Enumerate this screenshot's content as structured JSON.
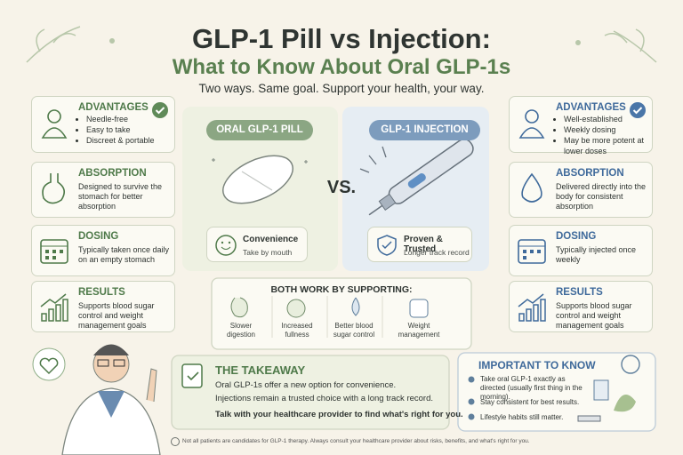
{
  "header": {
    "title": "GLP-1 Pill vs Injection:",
    "subtitle": "What to Know About Oral GLP-1s",
    "tagline": "Two ways. Same goal. Support your health, your way."
  },
  "pill": {
    "label": "ORAL GLP-1 PILL",
    "feature": {
      "title": "Convenience",
      "text": "Take by mouth"
    },
    "cards": [
      {
        "title": "ADVANTAGES",
        "items": [
          "Needle-free",
          "Easy to take",
          "Discreet & portable"
        ]
      },
      {
        "title": "ABSORPTION",
        "text": "Designed to survive the stomach for better absorption"
      },
      {
        "title": "DOSING",
        "text": "Typically taken once daily on an empty stomach"
      },
      {
        "title": "RESULTS",
        "text": "Supports blood sugar control and weight management goals"
      }
    ]
  },
  "vs": "VS.",
  "injection": {
    "label": "GLP-1 INJECTION",
    "feature": {
      "title": "Proven & Trusted",
      "text": "Longer track record"
    },
    "cards": [
      {
        "title": "ADVANTAGES",
        "items": [
          "Well-established",
          "Weekly dosing",
          "May be more potent at lower doses"
        ]
      },
      {
        "title": "ABSORPTION",
        "text": "Delivered directly into the body for consistent absorption"
      },
      {
        "title": "DOSING",
        "text": "Typically injected once weekly"
      },
      {
        "title": "RESULTS",
        "text": "Supports blood sugar control and weight management goals"
      }
    ]
  },
  "both": {
    "title": "BOTH WORK BY SUPPORTING:",
    "items": [
      "Slower digestion",
      "Increased fullness",
      "Better blood sugar control",
      "Weight management"
    ]
  },
  "takeaway": {
    "title": "THE TAKEAWAY",
    "lines": [
      "Oral GLP-1s offer a new option for convenience.",
      "Injections remain a trusted choice with a long track record.",
      "Talk with your healthcare provider to find what's right for you."
    ]
  },
  "important": {
    "title": "IMPORTANT TO KNOW",
    "items": [
      "Take oral GLP-1 exactly as directed (usually first thing in the morning).",
      "Stay consistent for best results.",
      "Lifestyle habits still matter."
    ]
  },
  "footnote": "Not all patients are candidates for GLP-1 therapy. Always consult your healthcare provider about risks, benefits, and what's right for you."
}
